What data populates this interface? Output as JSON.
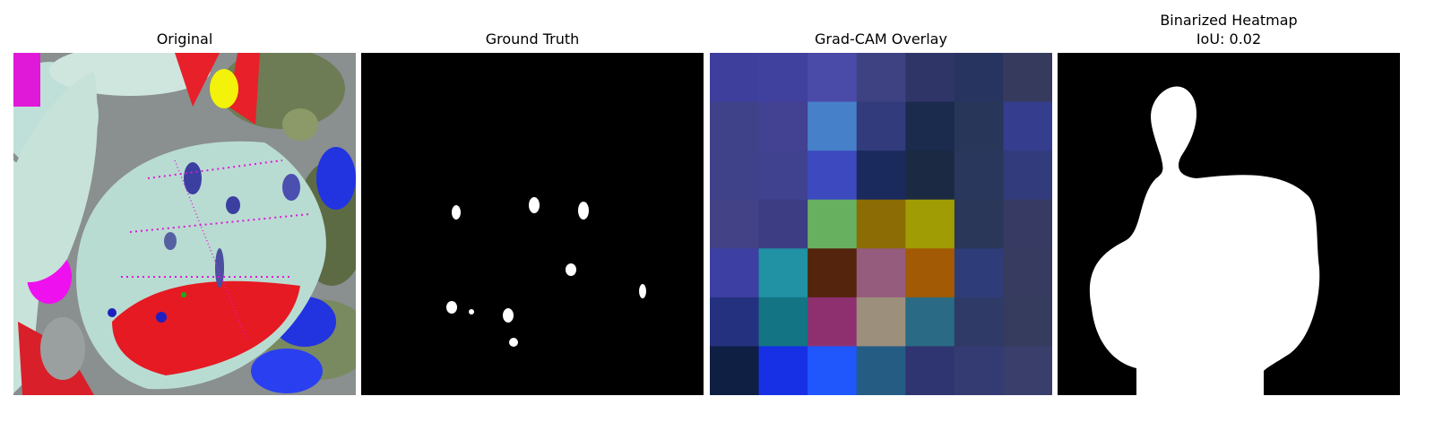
{
  "panels": {
    "original": {
      "title": "Original"
    },
    "ground_truth": {
      "title": "Ground Truth"
    },
    "gradcam": {
      "title": "Grad-CAM Overlay",
      "grid": [
        [
          "#3e3f9d",
          "#40409f",
          "#4a4aa8",
          "#3e4282",
          "#2f3567",
          "#27345f",
          "#363b5e"
        ],
        [
          "#3f4288",
          "#424192",
          "#4680c8",
          "#323b7b",
          "#1b2b4e",
          "#283659",
          "#353d8f"
        ],
        [
          "#3f4189",
          "#41428f",
          "#3d49bf",
          "#1a2a5c",
          "#1b2a42",
          "#28375b",
          "#323b7b"
        ],
        [
          "#434286",
          "#3c3d83",
          "#67b060",
          "#8c6c04",
          "#9f9c04",
          "#2b3758",
          "#373b63"
        ],
        [
          "#3d3fa2",
          "#2191a4",
          "#54240c",
          "#955c7d",
          "#a25a04",
          "#2e3c7a",
          "#363b5f"
        ],
        [
          "#24317e",
          "#137483",
          "#8e3070",
          "#9c8f7c",
          "#2a6a84",
          "#2f3a67",
          "#363c5e"
        ],
        [
          "#0f1f44",
          "#1730e6",
          "#1f57fc",
          "#255c84",
          "#2e3570",
          "#343b72",
          "#393e6b"
        ]
      ]
    },
    "binarized": {
      "title_line1": "Binarized Heatmap",
      "title_line2": "IoU: 0.02"
    }
  }
}
